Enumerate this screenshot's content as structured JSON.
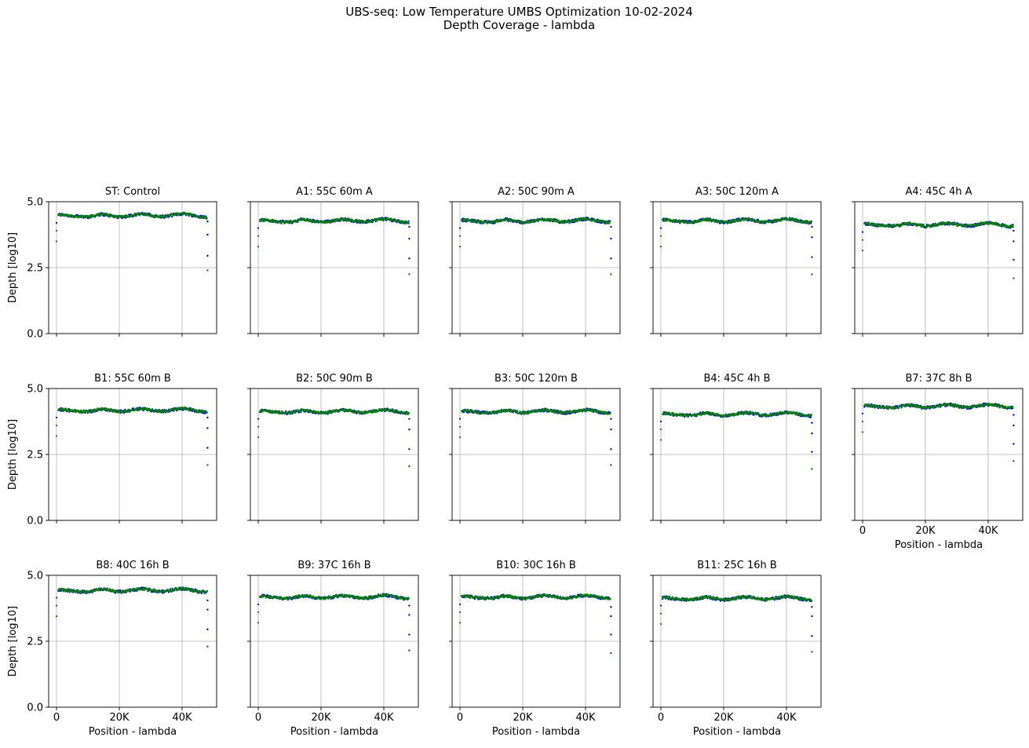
{
  "figure": {
    "title_line1": "UBS-seq: Low Temperature UMBS Optimization 10-02-2024",
    "title_line2": "Depth Coverage - lambda"
  },
  "axes_common": {
    "ylabel": "Depth [log10]",
    "xlabel": "Position - lambda",
    "x_ticks": [
      0,
      20000,
      40000
    ],
    "x_tick_labels": [
      "0",
      "20K",
      "40K"
    ],
    "y_ticks": [
      0,
      2.5,
      5
    ],
    "y_tick_labels": [
      "0.0",
      "2.5",
      "5.0"
    ],
    "xlim": [
      -2500,
      51000
    ],
    "ylim": [
      0,
      5
    ],
    "grid": true
  },
  "colors": {
    "series_a": "#0000ff",
    "series_b": "#008000",
    "grid": "#b0b0b0"
  },
  "chart_data": [
    {
      "type": "scatter",
      "title": "ST: Control",
      "base": 4.45,
      "tail": [
        4.25,
        3.75,
        2.95
      ],
      "tail_b": 2.4
    },
    {
      "type": "scatter",
      "title": "A1: 55C 60m A",
      "base": 4.25,
      "tail": [
        4.05,
        3.6,
        2.85
      ],
      "tail_b": 2.25
    },
    {
      "type": "scatter",
      "title": "A2: 50C 90m A",
      "base": 4.25,
      "tail": [
        4.05,
        3.6,
        2.85
      ],
      "tail_b": 2.25
    },
    {
      "type": "scatter",
      "title": "A3: 50C 120m A",
      "base": 4.25,
      "tail": [
        4.05,
        3.65,
        2.9
      ],
      "tail_b": 2.25
    },
    {
      "type": "scatter",
      "title": "A4: 45C 4h A",
      "base": 4.1,
      "tail": [
        3.9,
        3.5,
        2.8
      ],
      "tail_b": 2.1
    },
    {
      "type": "scatter",
      "title": "B1: 55C 60m B",
      "base": 4.15,
      "tail": [
        3.9,
        3.5,
        2.75
      ],
      "tail_b": 2.1
    },
    {
      "type": "scatter",
      "title": "B2: 50C 90m B",
      "base": 4.1,
      "tail": [
        3.85,
        3.45,
        2.7
      ],
      "tail_b": 2.05
    },
    {
      "type": "scatter",
      "title": "B3: 50C 120m B",
      "base": 4.1,
      "tail": [
        3.85,
        3.45,
        2.7
      ],
      "tail_b": 2.1
    },
    {
      "type": "scatter",
      "title": "B4: 45C 4h B",
      "base": 4.0,
      "tail": [
        3.7,
        3.3,
        2.6
      ],
      "tail_b": 1.95
    },
    {
      "type": "scatter",
      "title": "B7: 37C 8h B",
      "base": 4.3,
      "tail": [
        4.0,
        3.6,
        2.9
      ],
      "tail_b": 2.25
    },
    {
      "type": "scatter",
      "title": "B8: 40C 16h B",
      "base": 4.4,
      "tail": [
        4.05,
        3.7,
        2.95
      ],
      "tail_b": 2.3
    },
    {
      "type": "scatter",
      "title": "B9: 37C 16h B",
      "base": 4.15,
      "tail": [
        3.85,
        3.5,
        2.75
      ],
      "tail_b": 2.15
    },
    {
      "type": "scatter",
      "title": "B10: 30C 16h B",
      "base": 4.15,
      "tail": [
        3.8,
        3.45,
        2.75
      ],
      "tail_b": 2.05
    },
    {
      "type": "scatter",
      "title": "B11: 25C 16h B",
      "base": 4.1,
      "tail": [
        3.8,
        3.45,
        2.7
      ],
      "tail_b": 2.1
    }
  ]
}
